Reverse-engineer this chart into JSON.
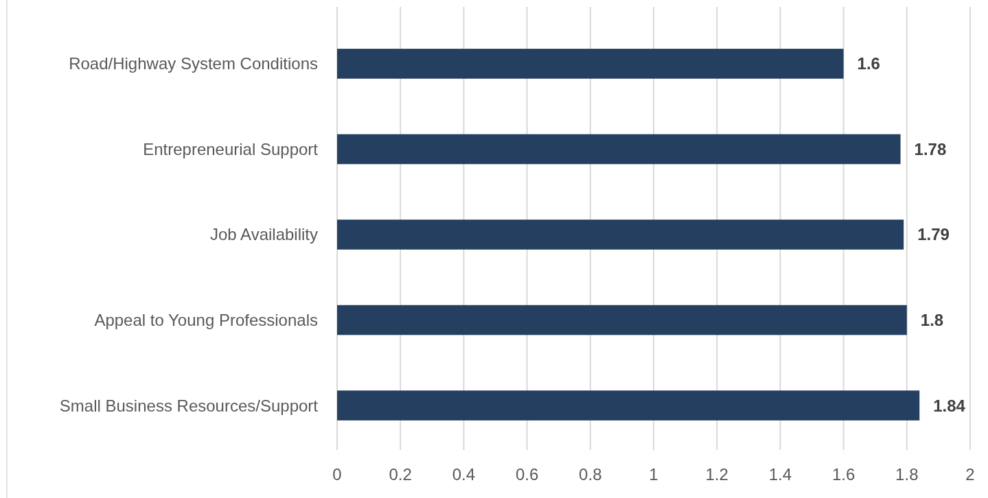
{
  "chart_data": {
    "type": "bar",
    "orientation": "horizontal",
    "categories": [
      "Road/Highway System Conditions",
      "Entrepreneurial Support",
      "Job Availability",
      "Appeal to Young Professionals",
      "Small Business Resources/Support"
    ],
    "values": [
      1.6,
      1.78,
      1.79,
      1.8,
      1.84
    ],
    "color": "#243f60",
    "xlim": [
      0,
      2
    ],
    "xticks": [
      0,
      0.2,
      0.4,
      0.6,
      0.8,
      1,
      1.2,
      1.4,
      1.6,
      1.8,
      2
    ],
    "grid": "x",
    "data_labels": true
  }
}
